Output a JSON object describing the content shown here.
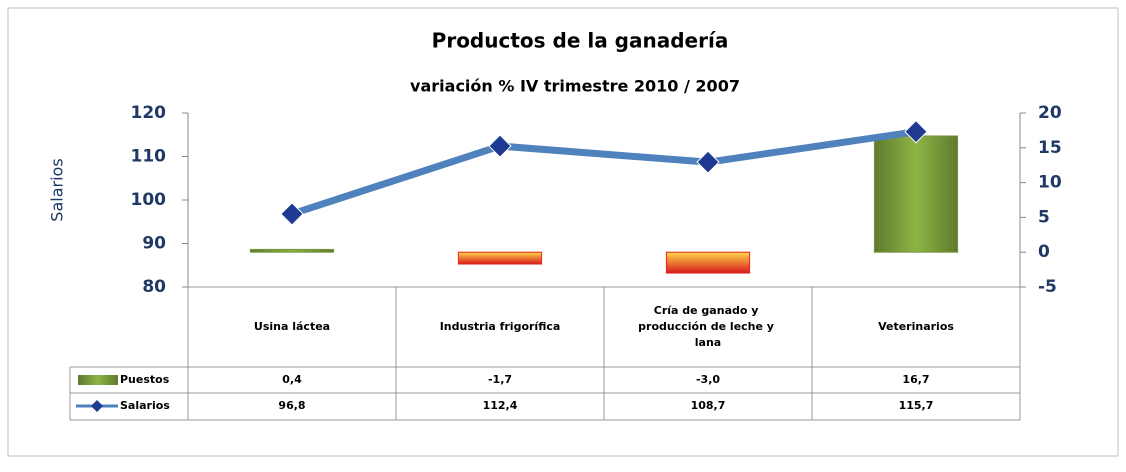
{
  "chart_data": {
    "type": "bar_line",
    "title": "Productos de la ganadería",
    "subtitle": "variación % IV trimestre 2010 / 2007",
    "y_label": "Salarios",
    "categories": [
      "Usina láctea",
      "Industria frigorífica",
      "Cría de ganado y producción de leche y lana",
      "Veterinarios"
    ],
    "series": [
      {
        "name": "Puestos",
        "type": "bar",
        "axis": "y2",
        "color": "#77933c",
        "negative_color": "#e8261c",
        "values": [
          0.4,
          -1.7,
          -3.0,
          16.7
        ],
        "value_labels": [
          "0,4",
          "-1,7",
          "-3,0",
          "16,7"
        ]
      },
      {
        "name": "Salarios",
        "type": "line",
        "axis": "y",
        "color": "#4f81bd",
        "marker_color": "#1f3a93",
        "values": [
          96.8,
          112.4,
          108.7,
          115.7
        ],
        "value_labels": [
          "96,8",
          "112,4",
          "108,7",
          "115,7"
        ]
      }
    ],
    "ylim": [
      80,
      120
    ],
    "yticks": [
      80,
      90,
      100,
      110,
      120
    ],
    "y2lim": [
      -5,
      20
    ],
    "y2ticks": [
      -5,
      0,
      5,
      10,
      15,
      20
    ]
  }
}
